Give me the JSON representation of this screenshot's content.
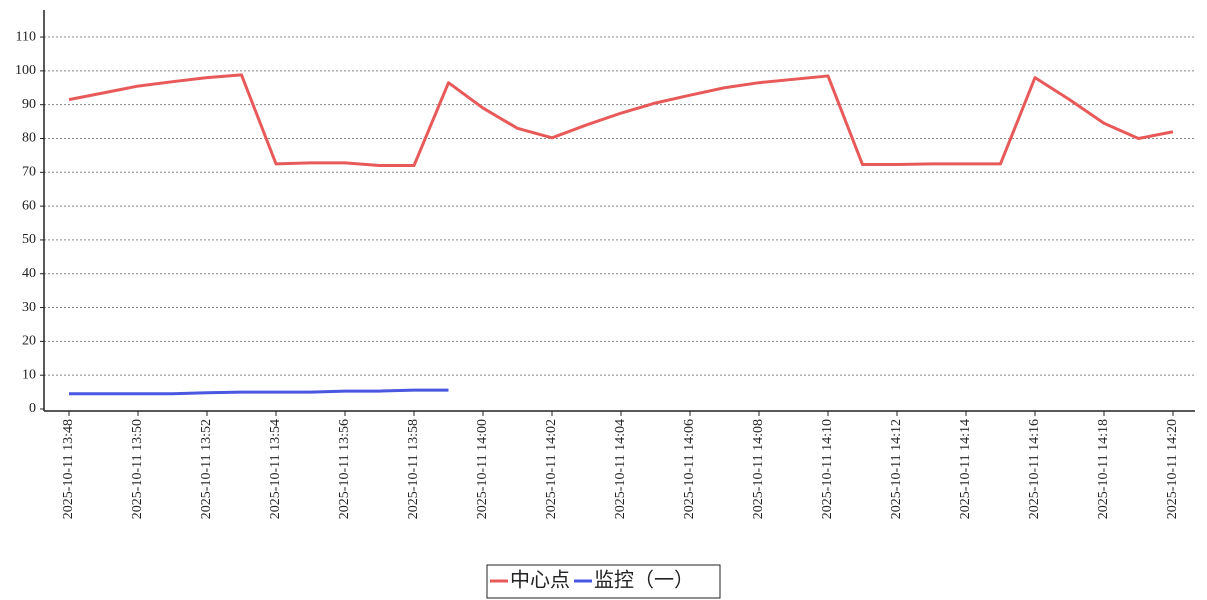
{
  "chart_data": {
    "type": "line",
    "categories": [
      "2025-10-11 13:48",
      null,
      "2025-10-11 13:50",
      null,
      "2025-10-11 13:52",
      null,
      "2025-10-11 13:54",
      null,
      "2025-10-11 13:56",
      null,
      "2025-10-11 13:58",
      null,
      "2025-10-11 14:00",
      null,
      "2025-10-11 14:02",
      null,
      "2025-10-11 14:04",
      null,
      "2025-10-11 14:06",
      null,
      "2025-10-11 14:08",
      null,
      "2025-10-11 14:10",
      null,
      "2025-10-11 14:12",
      null,
      "2025-10-11 14:14",
      null,
      "2025-10-11 14:16",
      null,
      "2025-10-11 14:18",
      null,
      "2025-10-11 14:20"
    ],
    "series": [
      {
        "name": "中心点",
        "color": "#e85a5a",
        "values": [
          91.5,
          93.5,
          95.5,
          96.8,
          98,
          98.8,
          72.5,
          72.8,
          72.8,
          72,
          72,
          96.5,
          89,
          83,
          80.2,
          84,
          87.5,
          90.5,
          92.8,
          95,
          96.5,
          97.5,
          98.5,
          72.3,
          72.3,
          72.5,
          72.5,
          72.5,
          98,
          91.5,
          84.5,
          80,
          82
        ]
      },
      {
        "name": "监控（一）",
        "color": "#4a57e0",
        "values": [
          4.5,
          4.5,
          4.5,
          4.5,
          4.8,
          5,
          5,
          5,
          5.3,
          5.3,
          5.6,
          5.6,
          null,
          null,
          null,
          null,
          null,
          null,
          null,
          null,
          null,
          null,
          null,
          null,
          null,
          null,
          null,
          null,
          null,
          null,
          null,
          null,
          null
        ]
      }
    ],
    "ylim": [
      0,
      118
    ],
    "yticks": [
      0,
      10,
      20,
      30,
      40,
      50,
      60,
      70,
      80,
      90,
      100,
      110
    ],
    "grid": true,
    "legend": "bottom"
  }
}
